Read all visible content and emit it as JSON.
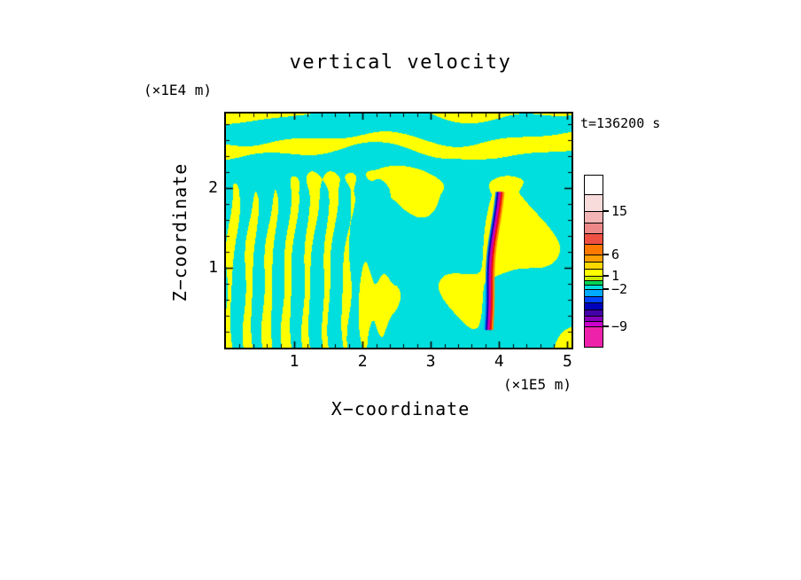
{
  "figure": {
    "title": "vertical velocity",
    "time_label": "t=136200 s"
  },
  "axes": {
    "x": {
      "label": "X−coordinate",
      "unit": "(×1E5 m)",
      "ticks": [
        "1",
        "2",
        "3",
        "4",
        "5"
      ],
      "range": [
        0,
        5.06
      ]
    },
    "z": {
      "label": "Z−coordinate",
      "unit": "(×1E4 m)",
      "ticks": [
        "1",
        "2"
      ],
      "range": [
        0,
        2.93
      ]
    }
  },
  "colorbar": {
    "labels": [
      {
        "text": "15",
        "y": 41
      },
      {
        "text": "6",
        "y": 90
      },
      {
        "text": "1",
        "y": 114
      },
      {
        "text": "−2",
        "y": 129
      },
      {
        "text": "−9",
        "y": 171
      }
    ],
    "segments": [
      {
        "color": "#ffffff",
        "h": 22
      },
      {
        "color": "#f8dcdc",
        "h": 19
      },
      {
        "color": "#f2b4b4",
        "h": 13
      },
      {
        "color": "#ec8888",
        "h": 12
      },
      {
        "color": "#ee5044",
        "h": 12
      },
      {
        "color": "#ff7800",
        "h": 12
      },
      {
        "color": "#ffa000",
        "h": 8
      },
      {
        "color": "#ffd800",
        "h": 8
      },
      {
        "color": "#ffff00",
        "h": 8
      },
      {
        "color": "#c8e800",
        "h": 5
      },
      {
        "color": "#00d455",
        "h": 5
      },
      {
        "color": "#00dede",
        "h": 5
      },
      {
        "color": "#00aaff",
        "h": 8
      },
      {
        "color": "#0044ff",
        "h": 7
      },
      {
        "color": "#0000bb",
        "h": 8
      },
      {
        "color": "#4400aa",
        "h": 7
      },
      {
        "color": "#8800bb",
        "h": 6
      },
      {
        "color": "#cc00cc",
        "h": 6
      },
      {
        "color": "#ee22aa",
        "h": 22
      }
    ]
  },
  "chart_data": {
    "type": "heatmap",
    "title": "vertical velocity",
    "time_annotation": "t=136200 s",
    "xlabel": "X−coordinate",
    "x_unit": "(×1E5 m)",
    "xlim": [
      0,
      5.06
    ],
    "x_ticks": [
      1,
      2,
      3,
      4,
      5
    ],
    "ylabel": "Z−coordinate",
    "y_unit": "(×1E4 m)",
    "ylim": [
      0,
      2.93
    ],
    "y_ticks": [
      1,
      2
    ],
    "colorbar_tick_values": [
      15,
      6,
      1,
      -2,
      -9
    ],
    "field": {
      "background_negative_color": "#00dede",
      "positive_color": "#ffff00",
      "threshold": 0.35,
      "description": "Two-tone vertical-velocity cross-section: cyan = weak negative, yellow = weak positive. Fine vertical wave stripes dominate the left half (x<2.5, z<2.3); wavy horizontal bands run along the top (z>2); irregular yellow cells over cyan fill the right half; the lower-right region is mostly cyan."
    },
    "streak": {
      "description": "Narrow intense convective column near x≈3.9 from z≈0.2 to z≈1.95, tilting right with height; extreme negative core (magenta/blue, down to about -9 and below) flanked by extreme positive (red/orange, up to about +15).",
      "x_center": 3.88,
      "z_range": [
        0.22,
        1.95
      ],
      "stripe_colors": [
        "#0080ff",
        "#0000aa",
        "#cc00bb",
        "#ee1100",
        "#ff8800"
      ],
      "stripe_offsets": [
        -0.055,
        -0.03,
        0,
        0.028,
        0.052
      ],
      "stripe_widths": [
        2,
        2.5,
        3.5,
        2.5,
        2
      ]
    }
  }
}
